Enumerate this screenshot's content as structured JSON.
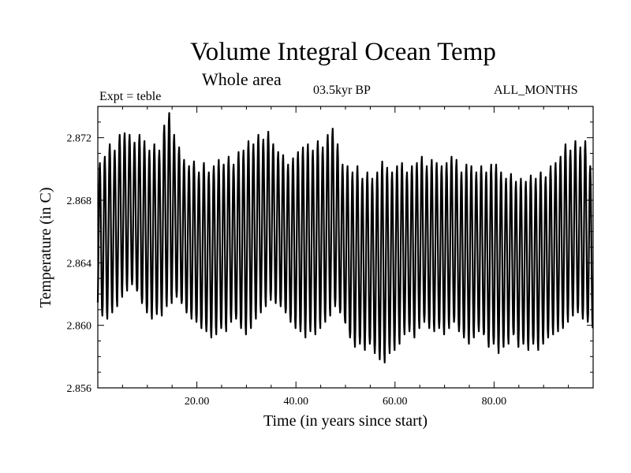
{
  "header": {
    "title": "Volume Integral Ocean Temp",
    "subtitle": "Whole area",
    "experiment": "Expt = teble",
    "period": "03.5kyr BP",
    "months": "ALL_MONTHS"
  },
  "chart_data": {
    "type": "line",
    "title": "Volume Integral Ocean Temp",
    "subtitle": "Whole area",
    "xlabel": "Time (in years since start)",
    "ylabel": "Temperature (in C)",
    "xlim": [
      0,
      100
    ],
    "ylim": [
      2.856,
      2.874
    ],
    "x_ticks": [
      20,
      40,
      60,
      80
    ],
    "x_tick_labels": [
      "20.00",
      "40.00",
      "60.00",
      "80.00"
    ],
    "y_ticks": [
      2.856,
      2.86,
      2.864,
      2.868,
      2.872
    ],
    "y_tick_labels": [
      "2.856",
      "2.860",
      "2.864",
      "2.868",
      "2.872"
    ],
    "series": [
      {
        "name": "Volume Integral Ocean Temp",
        "sampling": "monthly",
        "annual_cycle": true,
        "x": [
          0.5,
          1.5,
          2.5,
          3.5,
          4.5,
          5.5,
          6.5,
          7.5,
          8.5,
          9.5,
          10.5,
          11.5,
          12.5,
          13.5,
          14.5,
          15.5,
          16.5,
          17.5,
          18.5,
          19.5,
          20.5,
          21.5,
          22.5,
          23.5,
          24.5,
          25.5,
          26.5,
          27.5,
          28.5,
          29.5,
          30.5,
          31.5,
          32.5,
          33.5,
          34.5,
          35.5,
          36.5,
          37.5,
          38.5,
          39.5,
          40.5,
          41.5,
          42.5,
          43.5,
          44.5,
          45.5,
          46.5,
          47.5,
          48.5,
          49.5,
          50.5,
          51.5,
          52.5,
          53.5,
          54.5,
          55.5,
          56.5,
          57.5,
          58.5,
          59.5,
          60.5,
          61.5,
          62.5,
          63.5,
          64.5,
          65.5,
          66.5,
          67.5,
          68.5,
          69.5,
          70.5,
          71.5,
          72.5,
          73.5,
          74.5,
          75.5,
          76.5,
          77.5,
          78.5,
          79.5,
          80.5,
          81.5,
          82.5,
          83.5,
          84.5,
          85.5,
          86.5,
          87.5,
          88.5,
          89.5,
          90.5,
          91.5,
          92.5,
          93.5,
          94.5,
          95.5,
          96.5,
          97.5,
          98.5,
          99.5
        ],
        "annual_max": [
          2.8704,
          2.8708,
          2.8716,
          2.8712,
          2.8722,
          2.8723,
          2.8722,
          2.8717,
          2.8722,
          2.8718,
          2.8712,
          2.8716,
          2.8712,
          2.8728,
          2.8736,
          2.8722,
          2.8714,
          2.8706,
          2.8702,
          2.8705,
          2.8698,
          2.8704,
          2.8698,
          2.8702,
          2.8706,
          2.8703,
          2.8708,
          2.8703,
          2.8711,
          2.8712,
          2.8718,
          2.8716,
          2.8722,
          2.8719,
          2.8724,
          2.8716,
          2.8711,
          2.8709,
          2.8703,
          2.8707,
          2.8711,
          2.8714,
          2.8716,
          2.8712,
          2.8718,
          2.8714,
          2.8722,
          2.8726,
          2.8716,
          2.8703,
          2.8702,
          2.8698,
          2.8702,
          2.8694,
          2.8698,
          2.8694,
          2.8698,
          2.8705,
          2.8701,
          2.8698,
          2.8702,
          2.8704,
          2.8698,
          2.8702,
          2.8704,
          2.8708,
          2.8702,
          2.8706,
          2.8704,
          2.8702,
          2.8704,
          2.8708,
          2.8706,
          2.8698,
          2.8703,
          2.8702,
          2.8698,
          2.8702,
          2.8698,
          2.8703,
          2.8703,
          2.8698,
          2.8694,
          2.8697,
          2.8692,
          2.8694,
          2.8692,
          2.8696,
          2.8694,
          2.8698,
          2.8695,
          2.8702,
          2.8704,
          2.8708,
          2.8716,
          2.8712,
          2.8718,
          2.8714,
          2.8718,
          2.8702
        ],
        "annual_min": [
          2.8606,
          2.8604,
          2.8608,
          2.8612,
          2.8618,
          2.8622,
          2.8626,
          2.8622,
          2.8614,
          2.8608,
          2.8604,
          2.8607,
          2.8606,
          2.8612,
          2.8614,
          2.8618,
          2.8614,
          2.8608,
          2.8604,
          2.8602,
          2.8598,
          2.8596,
          2.8592,
          2.8594,
          2.8598,
          2.8596,
          2.8602,
          2.8604,
          2.8598,
          2.8594,
          2.8598,
          2.8604,
          2.8608,
          2.8612,
          2.8616,
          2.8614,
          2.8612,
          2.8608,
          2.8602,
          2.8598,
          2.8596,
          2.8592,
          2.8596,
          2.8594,
          2.8598,
          2.8602,
          2.8606,
          2.8612,
          2.8608,
          2.8602,
          2.8592,
          2.8586,
          2.8588,
          2.8584,
          2.8588,
          2.8582,
          2.8578,
          2.8576,
          2.8582,
          2.8584,
          2.8588,
          2.8594,
          2.8596,
          2.8592,
          2.8598,
          2.8602,
          2.8598,
          2.8596,
          2.8598,
          2.8594,
          2.8598,
          2.8602,
          2.8596,
          2.8592,
          2.8588,
          2.8592,
          2.8596,
          2.8594,
          2.8586,
          2.8588,
          2.8582,
          2.8586,
          2.8588,
          2.8594,
          2.8586,
          2.8588,
          2.8584,
          2.8588,
          2.8584,
          2.8588,
          2.8592,
          2.8594,
          2.8596,
          2.8598,
          2.8602,
          2.8606,
          2.8608,
          2.8604,
          2.8602,
          2.8598
        ]
      }
    ]
  }
}
